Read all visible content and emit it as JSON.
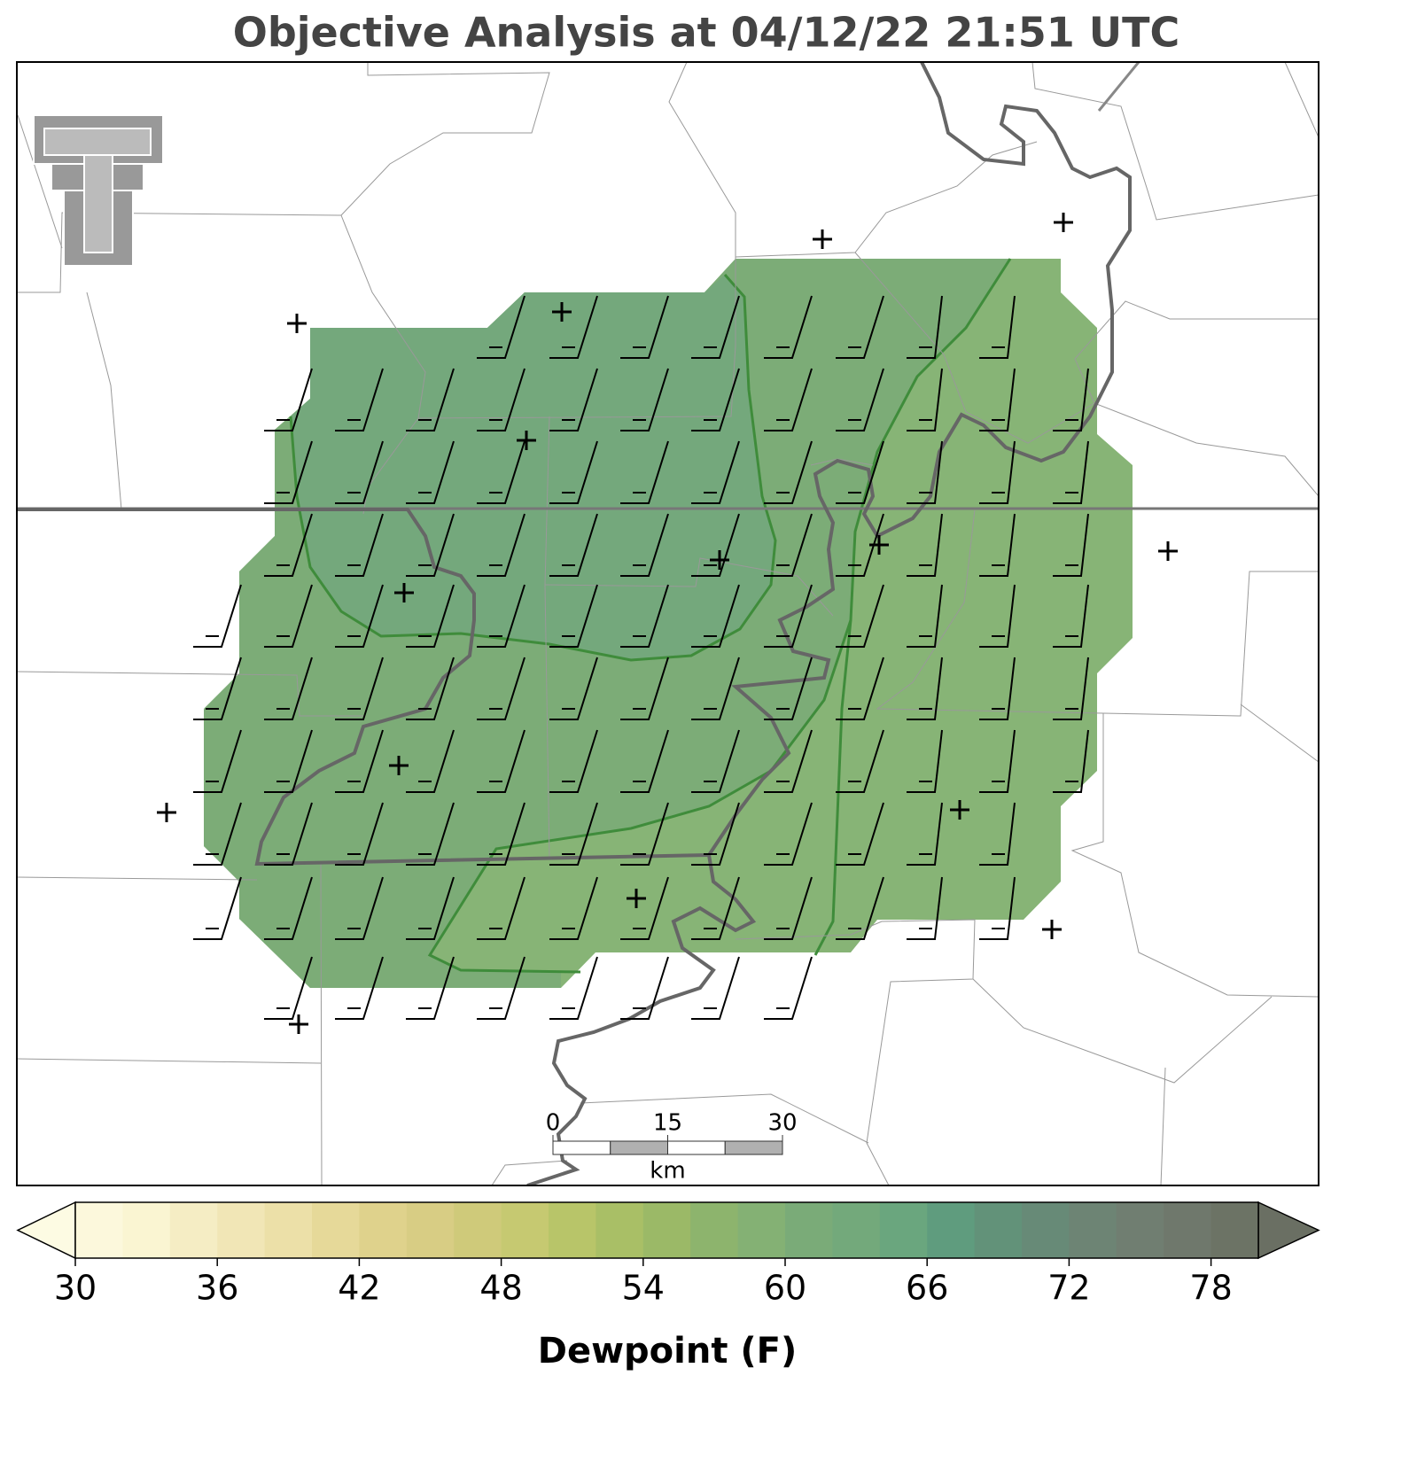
{
  "title": "Objective Analysis at 04/12/22 21:51 UTC",
  "colorbar": {
    "label": "Dewpoint (F)",
    "lim": [
      30,
      80
    ],
    "levels": [
      30,
      32,
      34,
      36,
      38,
      40,
      42,
      44,
      46,
      48,
      50,
      52,
      54,
      56,
      58,
      60,
      62,
      64,
      66,
      68,
      70,
      72,
      74,
      76,
      78,
      80
    ],
    "ticks": [
      30,
      36,
      42,
      48,
      54,
      60,
      66,
      72,
      78
    ],
    "colors": [
      "#fcf8dc",
      "#faf5d2",
      "#f5edc4",
      "#f1e6b6",
      "#ece0a8",
      "#e6d999",
      "#dfd28c",
      "#d8cd84",
      "#cfca7a",
      "#c6c971",
      "#b8c569",
      "#a9bf66",
      "#9bb967",
      "#8db46d",
      "#84b174",
      "#7aab78",
      "#73a97b",
      "#6aa67e",
      "#5f9c7e",
      "#629279",
      "#678a77",
      "#6d8474",
      "#707e71",
      "#6f786c",
      "#6c7365"
    ],
    "extend_colors": [
      "#fdfbe3",
      "#6a6f63"
    ]
  },
  "scale_bar": {
    "ticks": [
      0,
      15,
      30
    ],
    "unit": "km"
  }
}
